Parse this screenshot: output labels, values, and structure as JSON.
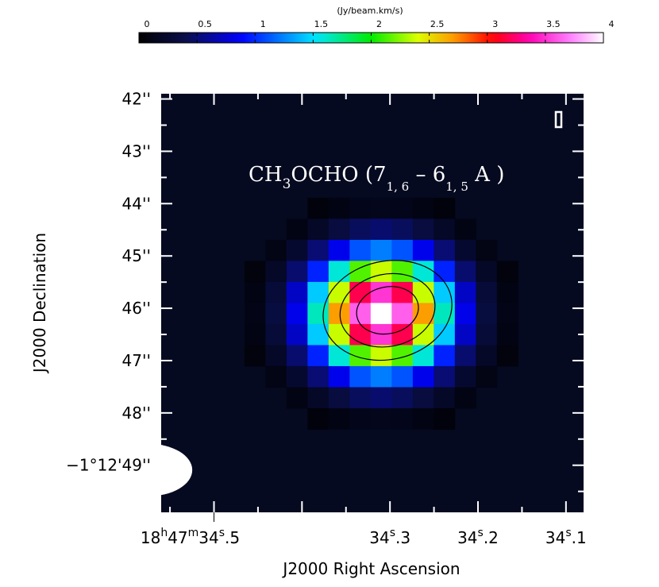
{
  "chart_data": {
    "type": "heatmap",
    "title": "CH3OCHO (7 1,6 – 6 1,5 A )",
    "title_parts": {
      "molecule_a": "CH",
      "molecule_sub": "3",
      "molecule_b": "OCHO (7",
      "sub_upper": "1, 6",
      "dash": " – 6",
      "sub_lower": "1, 5",
      "tail": " A )"
    },
    "xlabel": "J2000 Right Ascension",
    "ylabel": "J2000 Declination",
    "x_ticklabels": [
      {
        "h": "18",
        "hs": "h",
        "m": "47",
        "ms": "m",
        "s": "34",
        "ss": "s",
        "f": ".5",
        "ra_s": 34.5
      },
      {
        "s": "34",
        "ss": "s",
        "f": ".3",
        "ra_s": 34.3
      },
      {
        "s": "34",
        "ss": "s",
        "f": ".2",
        "ra_s": 34.2
      },
      {
        "s": "34",
        "ss": "s",
        "f": ".1",
        "ra_s": 34.1
      }
    ],
    "x_tick_values_s": [
      34.5,
      34.4,
      34.3,
      34.2,
      34.1
    ],
    "x_range_s": [
      34.56,
      34.08
    ],
    "y_ticklabels": [
      {
        "text": "42''",
        "dec_arcsec": 42
      },
      {
        "text": "43''",
        "dec_arcsec": 43
      },
      {
        "text": "44''",
        "dec_arcsec": 44
      },
      {
        "text": "45''",
        "dec_arcsec": 45
      },
      {
        "text": "46''",
        "dec_arcsec": 46
      },
      {
        "text": "47''",
        "dec_arcsec": 47
      },
      {
        "text": "48''",
        "dec_arcsec": 48
      },
      {
        "text": "−1°12'49''",
        "dec_arcsec": 49
      }
    ],
    "y_range_arcsec": [
      41.9,
      49.9
    ],
    "colorbar": {
      "label": "(Jy/beam.km/s)",
      "min": 0,
      "max": 4,
      "ticklabels": [
        "0",
        "0.5",
        "1",
        "1.5",
        "2",
        "2.5",
        "3",
        "3.5",
        "4"
      ],
      "tick_values": [
        0,
        0.5,
        1,
        1.5,
        2,
        2.5,
        3,
        3.5,
        4
      ]
    },
    "peak_value": 4.0,
    "peak_position": {
      "ra_s": 34.31,
      "dec_arcsec": 46.1
    },
    "emission_fwhm_arcsec": {
      "ra": 1.9,
      "dec": 1.85
    },
    "contour_levels": [
      2.0,
      2.8,
      3.5
    ],
    "beam": {
      "major_arcsec": 1.0,
      "minor_arcsec": 1.2,
      "pa_deg": 0,
      "ra_s": 34.54,
      "dec_arcsec": 49.0
    },
    "grid": false
  },
  "colors": {
    "background": "#ffffff",
    "map_floor": "#050a20",
    "title_text": "#ffffff",
    "beam": "#ffffff",
    "contour": "#000000"
  }
}
